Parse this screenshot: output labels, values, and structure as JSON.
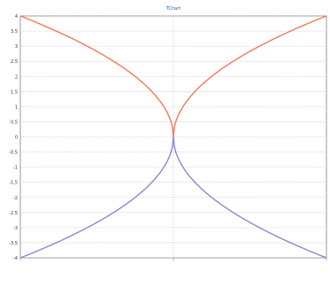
{
  "chart_data": {
    "type": "line",
    "title": "TChart",
    "xlabel": "",
    "ylabel": "",
    "xlim": [
      -4,
      4
    ],
    "ylim": [
      -4,
      4
    ],
    "y_tick_labels": [
      "4",
      "3.5",
      "3",
      "2.5",
      "2",
      "1.5",
      "1",
      "0.5",
      "0",
      "-0.5",
      "-1",
      "-1.5",
      "-2",
      "-2.5",
      "-3",
      "-3.5",
      "-4"
    ],
    "grid": true,
    "legend": "none",
    "series": [
      {
        "color": "#f07a5a",
        "function": "y = 2*sqrt(|x|)",
        "sample_step": 0.1
      },
      {
        "color": "#8a88d6",
        "function": "y = -2*sqrt(|x|)",
        "sample_step": 0.1
      }
    ]
  }
}
